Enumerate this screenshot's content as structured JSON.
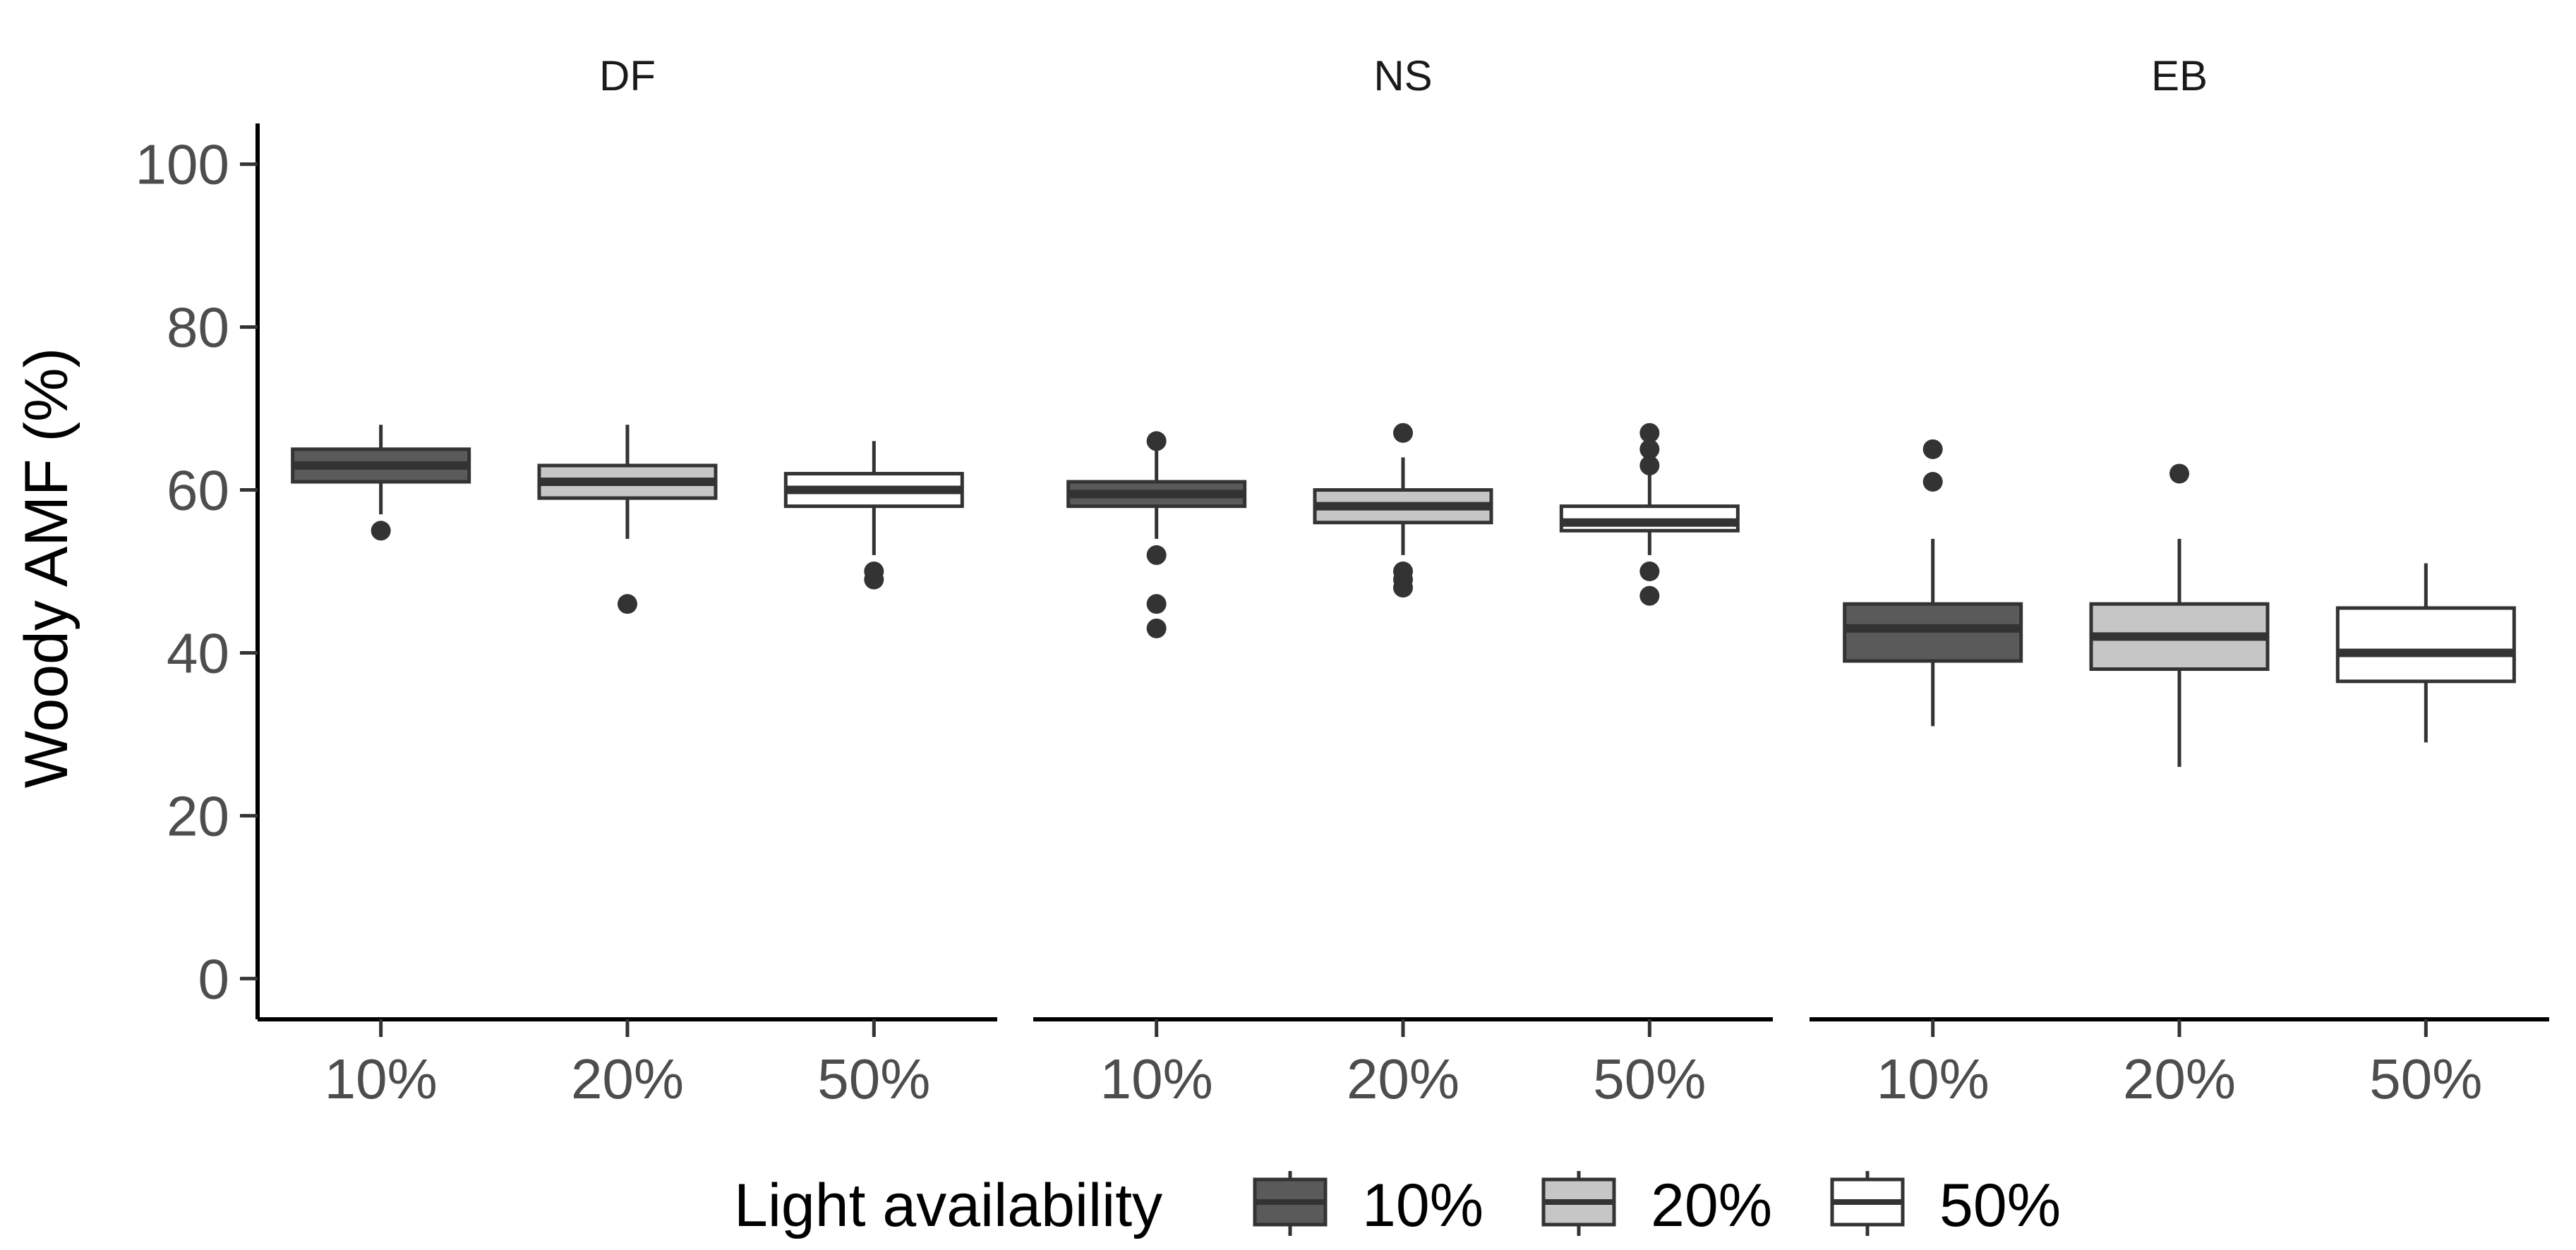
{
  "chart_data": {
    "type": "boxplot",
    "ylabel": "Woody AMF (%)",
    "xlabel": "",
    "ylim": [
      -5,
      105
    ],
    "yticks": [
      0,
      20,
      40,
      60,
      80,
      100
    ],
    "categories": [
      "10%",
      "20%",
      "50%"
    ],
    "legend": {
      "title": "Light availability",
      "position": "bottom",
      "entries": [
        {
          "label": "10%",
          "color": "#5a5a5a"
        },
        {
          "label": "20%",
          "color": "#c6c6c6"
        },
        {
          "label": "50%",
          "color": "#ffffff"
        }
      ]
    },
    "facets": [
      {
        "label": "DF",
        "boxes": [
          {
            "category": "10%",
            "whisker_low": 57,
            "q1": 61,
            "median": 63,
            "q3": 65,
            "whisker_high": 68,
            "outliers": [
              55
            ]
          },
          {
            "category": "20%",
            "whisker_low": 54,
            "q1": 59,
            "median": 61,
            "q3": 63,
            "whisker_high": 68,
            "outliers": [
              46
            ]
          },
          {
            "category": "50%",
            "whisker_low": 52,
            "q1": 58,
            "median": 60,
            "q3": 62,
            "whisker_high": 66,
            "outliers": [
              50,
              49
            ]
          }
        ]
      },
      {
        "label": "NS",
        "boxes": [
          {
            "category": "10%",
            "whisker_low": 54,
            "q1": 58,
            "median": 59.5,
            "q3": 61,
            "whisker_high": 65,
            "outliers": [
              66,
              52,
              46,
              43
            ]
          },
          {
            "category": "20%",
            "whisker_low": 52,
            "q1": 56,
            "median": 58,
            "q3": 60,
            "whisker_high": 64,
            "outliers": [
              67,
              50,
              49,
              48
            ]
          },
          {
            "category": "50%",
            "whisker_low": 52,
            "q1": 55,
            "median": 56,
            "q3": 58,
            "whisker_high": 62,
            "outliers": [
              67,
              65,
              63,
              50,
              47
            ]
          }
        ]
      },
      {
        "label": "EB",
        "boxes": [
          {
            "category": "10%",
            "whisker_low": 31,
            "q1": 39,
            "median": 43,
            "q3": 46,
            "whisker_high": 54,
            "outliers": [
              65,
              61
            ]
          },
          {
            "category": "20%",
            "whisker_low": 26,
            "q1": 38,
            "median": 42,
            "q3": 46,
            "whisker_high": 54,
            "outliers": [
              62
            ]
          },
          {
            "category": "50%",
            "whisker_low": 29,
            "q1": 36.5,
            "median": 40,
            "q3": 45.5,
            "whisker_high": 51,
            "outliers": []
          }
        ]
      }
    ]
  }
}
